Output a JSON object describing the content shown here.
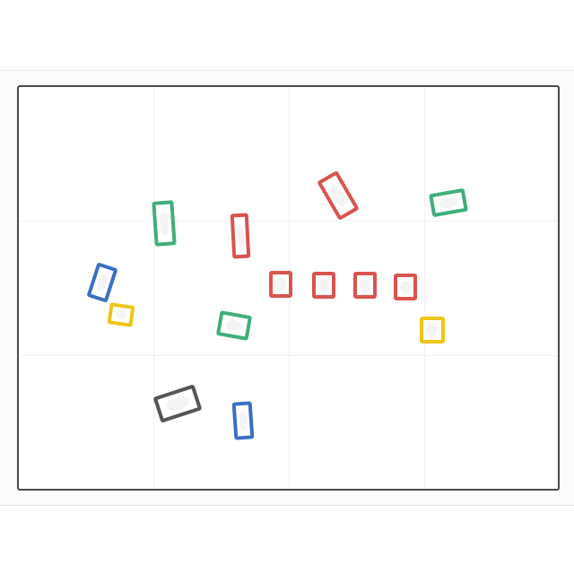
{
  "scene": {
    "description_colors": {
      "background": "#ffffff",
      "frame": "#4a4a4a"
    },
    "tiles": [
      {
        "color": "green",
        "hex": "#3fae7a"
      },
      {
        "color": "red",
        "hex": "#d9534f"
      },
      {
        "color": "red",
        "hex": "#d9534f"
      },
      {
        "color": "green",
        "hex": "#3fae7a"
      },
      {
        "color": "blue",
        "hex": "#3b6fc4"
      },
      {
        "color": "yellow",
        "hex": "#f0c419"
      },
      {
        "color": "red",
        "hex": "#d9534f"
      },
      {
        "color": "red",
        "hex": "#d9534f"
      },
      {
        "color": "red",
        "hex": "#d9534f"
      },
      {
        "color": "red",
        "hex": "#d9534f"
      },
      {
        "color": "green",
        "hex": "#3fae7a"
      },
      {
        "color": "yellow",
        "hex": "#f0c419"
      },
      {
        "color": "gray",
        "hex": "#555555"
      },
      {
        "color": "blue",
        "hex": "#3b6fc4"
      }
    ]
  }
}
